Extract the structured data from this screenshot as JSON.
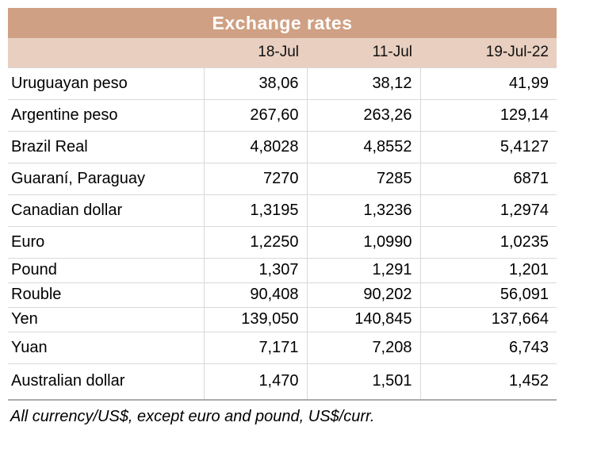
{
  "chart_data": {
    "type": "table",
    "title": "Exchange rates",
    "columns": [
      "18-Jul",
      "11-Jul",
      "19-Jul-22"
    ],
    "rows": [
      {
        "label": "Uruguayan peso",
        "values": [
          "38,06",
          "38,12",
          "41,99"
        ]
      },
      {
        "label": "Argentine peso",
        "values": [
          "267,60",
          "263,26",
          "129,14"
        ]
      },
      {
        "label": "Brazil Real",
        "values": [
          "4,8028",
          "4,8552",
          "5,4127"
        ]
      },
      {
        "label": "Guaraní, Paraguay",
        "values": [
          "7270",
          "7285",
          "6871"
        ]
      },
      {
        "label": "Canadian dollar",
        "values": [
          "1,3195",
          "1,3236",
          "1,2974"
        ]
      },
      {
        "label": "Euro",
        "values": [
          "1,2250",
          "1,0990",
          "1,0235"
        ]
      },
      {
        "label": "Pound",
        "values": [
          "1,307",
          "1,291",
          "1,201"
        ]
      },
      {
        "label": "Rouble",
        "values": [
          "90,408",
          "90,202",
          "56,091"
        ]
      },
      {
        "label": "Yen",
        "values": [
          "139,050",
          "140,845",
          "137,664"
        ]
      },
      {
        "label": "Yuan",
        "values": [
          "7,171",
          "7,208",
          "6,743"
        ]
      },
      {
        "label": "Australian dollar",
        "values": [
          "1,470",
          "1,501",
          "1,452"
        ]
      }
    ],
    "footnote": "All currency/US$, except euro and pound, US$/curr.",
    "layout": {
      "value_alignment": "right",
      "decimal_separator": "comma",
      "grid": "light horizontal and vertical separators in body only"
    }
  },
  "colors": {
    "title_bg": "#CFA083",
    "title_text": "#FFFFFF",
    "subheader_bg": "#E8CFC0",
    "gridline": "#D9D9D9",
    "body_text": "#000000"
  }
}
